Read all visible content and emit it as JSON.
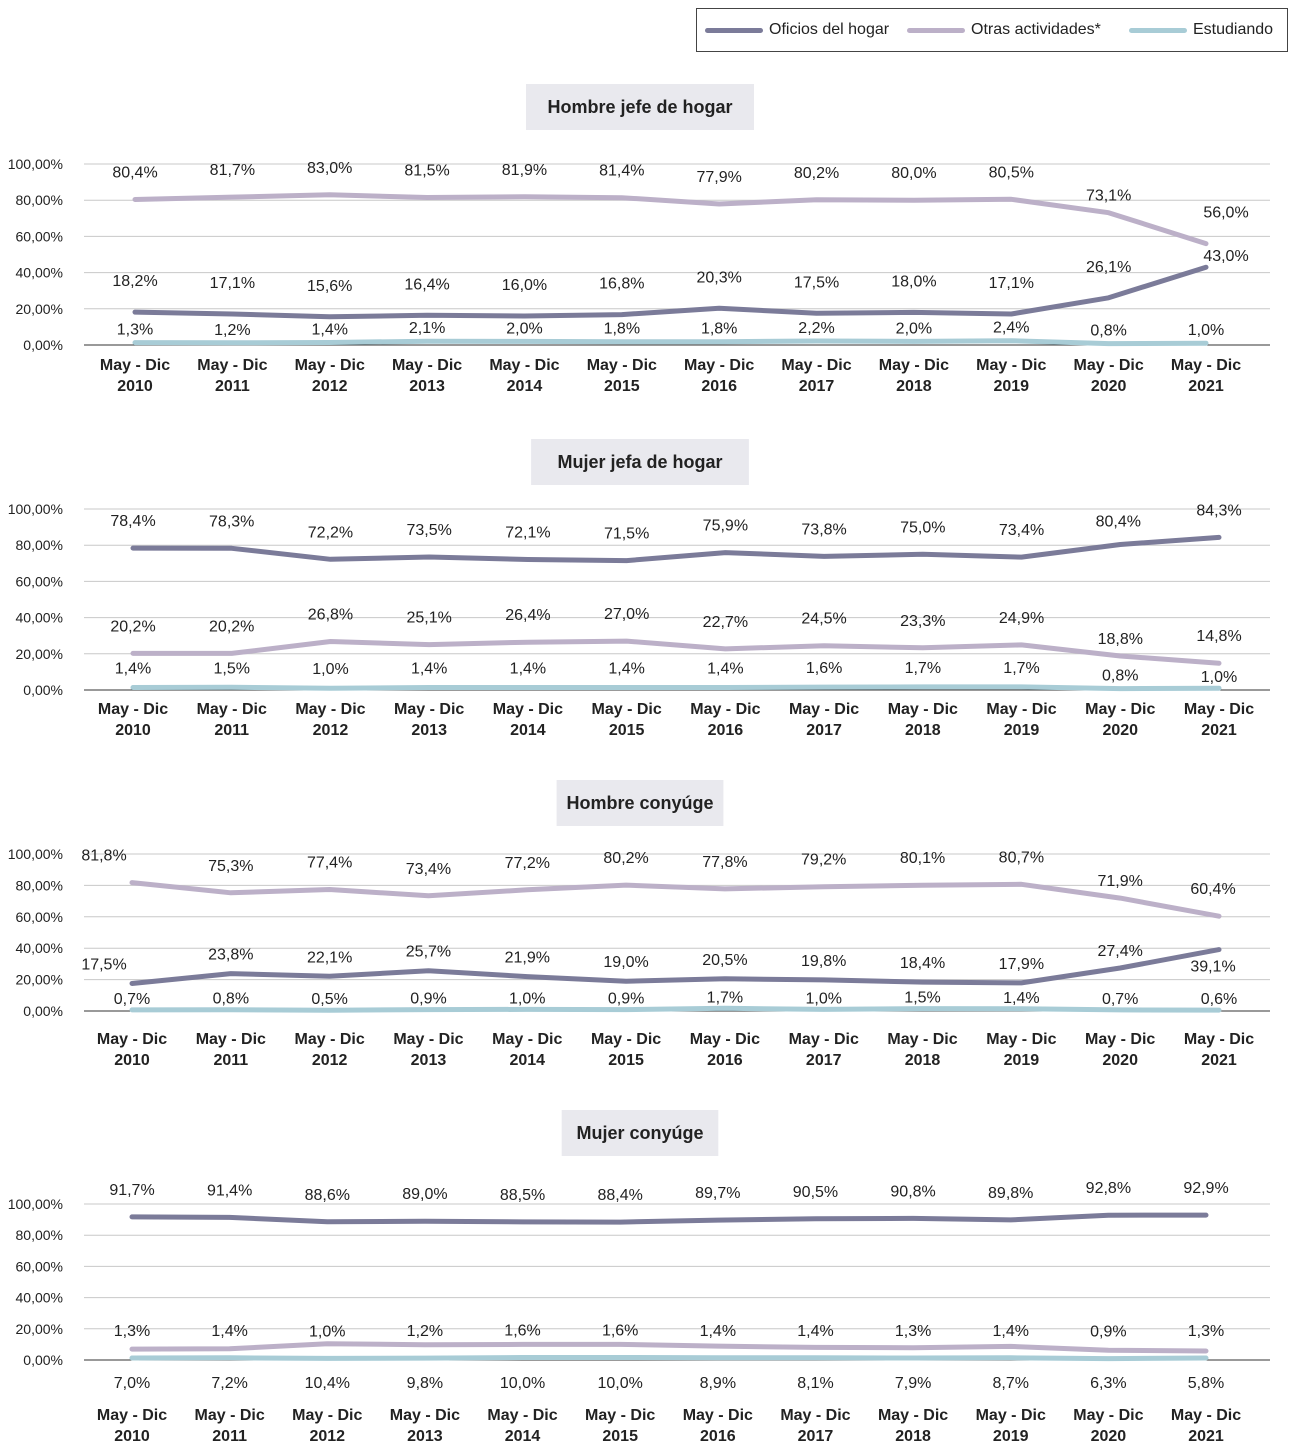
{
  "legend": [
    {
      "name": "Oficios del hogar",
      "color": "#7b7b99"
    },
    {
      "name": "Otras actividades*",
      "color": "#bcb0c8"
    },
    {
      "name": "Estudiando",
      "color": "#a8ccd6"
    }
  ],
  "chart_data": [
    {
      "type": "line",
      "title": "Hombre jefe de hogar",
      "categories": [
        "May - Dic 2010",
        "May - Dic 2011",
        "May - Dic 2012",
        "May - Dic 2013",
        "May - Dic 2014",
        "May - Dic 2015",
        "May - Dic 2016",
        "May - Dic 2017",
        "May - Dic 2018",
        "May - Dic 2019",
        "May - Dic 2020",
        "May - Dic 2021"
      ],
      "yticks": [
        "100,00%",
        "80,00%",
        "60,00%",
        "40,00%",
        "20,00%",
        "0,00%"
      ],
      "ylim": [
        0,
        100
      ],
      "series": [
        {
          "name": "Otras actividades*",
          "values": [
            80.4,
            81.7,
            83.0,
            81.5,
            81.9,
            81.4,
            77.9,
            80.2,
            80.0,
            80.5,
            73.1,
            56.0
          ],
          "labels": [
            "80,4%",
            "81,7%",
            "83,0%",
            "81,5%",
            "81,9%",
            "81,4%",
            "77,9%",
            "80,2%",
            "80,0%",
            "80,5%",
            "73,1%",
            "56,0%"
          ]
        },
        {
          "name": "Oficios del hogar",
          "values": [
            18.2,
            17.1,
            15.6,
            16.4,
            16.0,
            16.8,
            20.3,
            17.5,
            18.0,
            17.1,
            26.1,
            43.0
          ],
          "labels": [
            "18,2%",
            "17,1%",
            "15,6%",
            "16,4%",
            "16,0%",
            "16,8%",
            "20,3%",
            "17,5%",
            "18,0%",
            "17,1%",
            "26,1%",
            "43,0%"
          ]
        },
        {
          "name": "Estudiando",
          "values": [
            1.3,
            1.2,
            1.4,
            2.1,
            2.0,
            1.8,
            1.8,
            2.2,
            2.0,
            2.4,
            0.8,
            1.0
          ],
          "labels": [
            "1,3%",
            "1,2%",
            "1,4%",
            "2,1%",
            "2,0%",
            "1,8%",
            "1,8%",
            "2,2%",
            "2,0%",
            "2,4%",
            "0,8%",
            "1,0%"
          ]
        }
      ]
    },
    {
      "type": "line",
      "title": "Mujer jefa de hogar",
      "categories": [
        "May - Dic 2010",
        "May - Dic 2011",
        "May - Dic 2012",
        "May - Dic 2013",
        "May - Dic 2014",
        "May - Dic 2015",
        "May - Dic 2016",
        "May - Dic 2017",
        "May - Dic 2018",
        "May - Dic 2019",
        "May - Dic 2020",
        "May - Dic 2021"
      ],
      "yticks": [
        "100,00%",
        "80,00%",
        "60,00%",
        "40,00%",
        "20,00%",
        "0,00%"
      ],
      "ylim": [
        0,
        100
      ],
      "series": [
        {
          "name": "Oficios del hogar",
          "values": [
            78.4,
            78.3,
            72.2,
            73.5,
            72.1,
            71.5,
            75.9,
            73.8,
            75.0,
            73.4,
            80.4,
            84.3
          ],
          "labels": [
            "78,4%",
            "78,3%",
            "72,2%",
            "73,5%",
            "72,1%",
            "71,5%",
            "75,9%",
            "73,8%",
            "75,0%",
            "73,4%",
            "80,4%",
            "84,3%"
          ]
        },
        {
          "name": "Otras actividades*",
          "values": [
            20.2,
            20.2,
            26.8,
            25.1,
            26.4,
            27.0,
            22.7,
            24.5,
            23.3,
            24.9,
            18.8,
            14.8
          ],
          "labels": [
            "20,2%",
            "20,2%",
            "26,8%",
            "25,1%",
            "26,4%",
            "27,0%",
            "22,7%",
            "24,5%",
            "23,3%",
            "24,9%",
            "18,8%",
            "14,8%"
          ]
        },
        {
          "name": "Estudiando",
          "values": [
            1.4,
            1.5,
            1.0,
            1.4,
            1.4,
            1.4,
            1.4,
            1.6,
            1.7,
            1.7,
            0.8,
            1.0
          ],
          "labels": [
            "1,4%",
            "1,5%",
            "1,0%",
            "1,4%",
            "1,4%",
            "1,4%",
            "1,4%",
            "1,6%",
            "1,7%",
            "1,7%",
            "0,8%",
            "1,0%"
          ]
        }
      ]
    },
    {
      "type": "line",
      "title": "Hombre conyúge",
      "categories": [
        "May - Dic 2010",
        "May - Dic 2011",
        "May - Dic 2012",
        "May - Dic 2013",
        "May - Dic 2014",
        "May - Dic 2015",
        "May - Dic 2016",
        "May - Dic 2017",
        "May - Dic 2018",
        "May - Dic 2019",
        "May - Dic 2020",
        "May - Dic 2021"
      ],
      "yticks": [
        "100,00%",
        "80,00%",
        "60,00%",
        "40,00%",
        "20,00%",
        "0,00%"
      ],
      "ylim": [
        0,
        100
      ],
      "series": [
        {
          "name": "Otras actividades*",
          "values": [
            81.8,
            75.3,
            77.4,
            73.4,
            77.2,
            80.2,
            77.8,
            79.2,
            80.1,
            80.7,
            71.9,
            60.4
          ],
          "labels": [
            "81,8%",
            "75,3%",
            "77,4%",
            "73,4%",
            "77,2%",
            "80,2%",
            "77,8%",
            "79,2%",
            "80,1%",
            "80,7%",
            "71,9%",
            "60,4%"
          ]
        },
        {
          "name": "Oficios del hogar",
          "values": [
            17.5,
            23.8,
            22.1,
            25.7,
            21.9,
            19.0,
            20.5,
            19.8,
            18.4,
            17.9,
            27.4,
            39.1
          ],
          "labels": [
            "17,5%",
            "23,8%",
            "22,1%",
            "25,7%",
            "21,9%",
            "19,0%",
            "20,5%",
            "19,8%",
            "18,4%",
            "17,9%",
            "27,4%",
            "39,1%"
          ]
        },
        {
          "name": "Estudiando",
          "values": [
            0.7,
            0.8,
            0.5,
            0.9,
            1.0,
            0.9,
            1.7,
            1.0,
            1.5,
            1.4,
            0.7,
            0.6
          ],
          "labels": [
            "0,7%",
            "0,8%",
            "0,5%",
            "0,9%",
            "1,0%",
            "0,9%",
            "1,7%",
            "1,0%",
            "1,5%",
            "1,4%",
            "0,7%",
            "0,6%"
          ]
        }
      ]
    },
    {
      "type": "line",
      "title": "Mujer conyúge",
      "categories": [
        "May - Dic 2010",
        "May - Dic 2011",
        "May - Dic 2012",
        "May - Dic 2013",
        "May - Dic 2014",
        "May - Dic 2015",
        "May - Dic 2016",
        "May - Dic 2017",
        "May - Dic 2018",
        "May - Dic 2019",
        "May - Dic 2020",
        "May - Dic 2021"
      ],
      "yticks": [
        "100,00%",
        "80,00%",
        "60,00%",
        "40,00%",
        "20,00%",
        "0,00%"
      ],
      "ylim": [
        0,
        100
      ],
      "series": [
        {
          "name": "Oficios del hogar",
          "values": [
            91.7,
            91.4,
            88.6,
            89.0,
            88.5,
            88.4,
            89.7,
            90.5,
            90.8,
            89.8,
            92.8,
            92.9
          ],
          "labels": [
            "91,7%",
            "91,4%",
            "88,6%",
            "89,0%",
            "88,5%",
            "88,4%",
            "89,7%",
            "90,5%",
            "90,8%",
            "89,8%",
            "92,8%",
            "92,9%"
          ]
        },
        {
          "name": "Otras actividades*",
          "values": [
            7.0,
            7.2,
            10.4,
            9.8,
            10.0,
            10.0,
            8.9,
            8.1,
            7.9,
            8.7,
            6.3,
            5.8
          ],
          "labels": [
            "7,0%",
            "7,2%",
            "10,4%",
            "9,8%",
            "10,0%",
            "10,0%",
            "8,9%",
            "8,1%",
            "7,9%",
            "8,7%",
            "6,3%",
            "5,8%"
          ]
        },
        {
          "name": "Estudiando",
          "values": [
            1.3,
            1.4,
            1.0,
            1.2,
            1.6,
            1.6,
            1.4,
            1.4,
            1.3,
            1.4,
            0.9,
            1.3
          ],
          "labels": [
            "1,3%",
            "1,4%",
            "1,0%",
            "1,2%",
            "1,6%",
            "1,6%",
            "1,4%",
            "1,4%",
            "1,3%",
            "1,4%",
            "0,9%",
            "1,3%"
          ]
        }
      ]
    }
  ]
}
